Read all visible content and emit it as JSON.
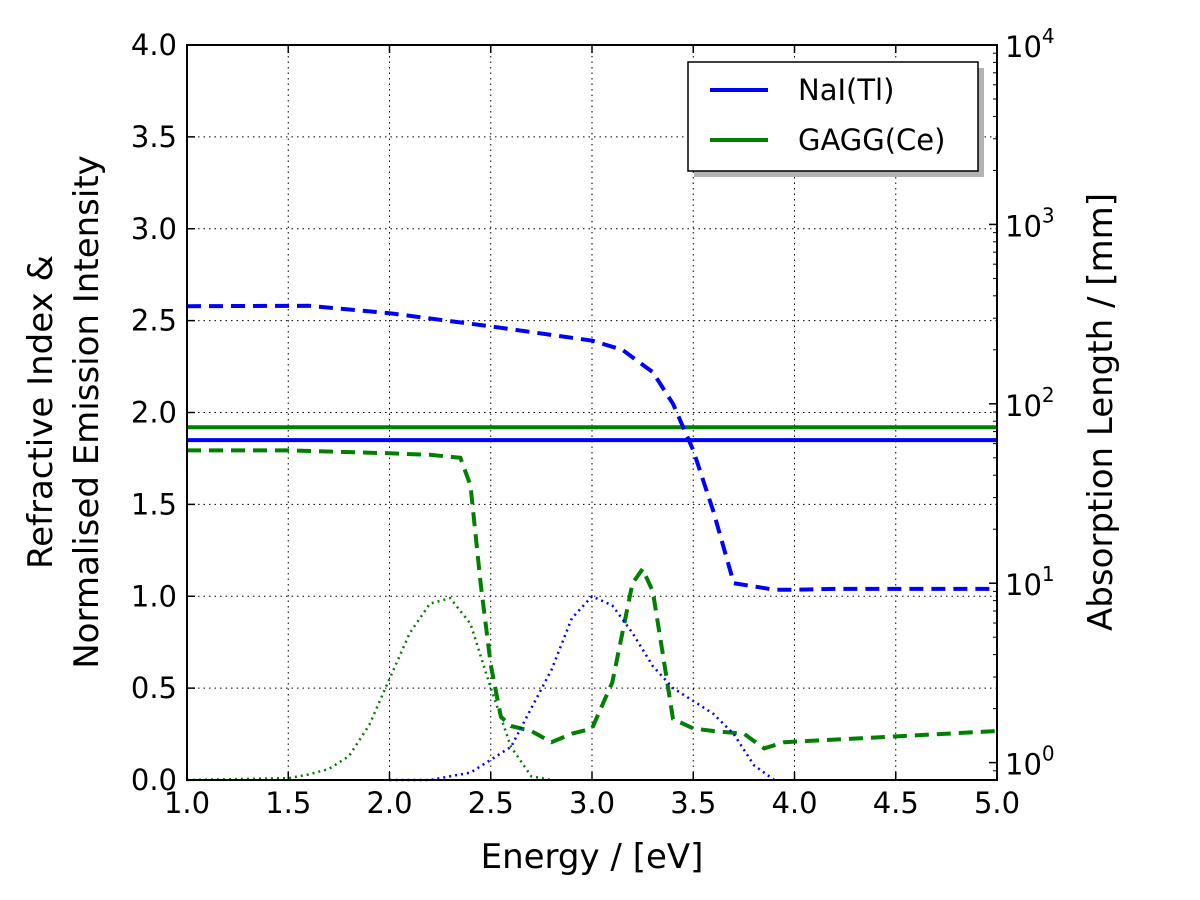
{
  "chart_data": {
    "type": "line",
    "xlabel": "Energy / [eV]",
    "ylabel_left_line1": "Refractive Index &",
    "ylabel_left_line2": "Normalised Emission Intensity",
    "ylabel_right": "Absorption Length / [mm]",
    "xlim": [
      1.0,
      5.0
    ],
    "ylim_left": [
      0.0,
      4.0
    ],
    "ylim_right": [
      0.8,
      10000
    ],
    "y_right_scale": "log",
    "grid": true,
    "legend_position": "top-right",
    "x_ticks": [
      "1.0",
      "1.5",
      "2.0",
      "2.5",
      "3.0",
      "3.5",
      "4.0",
      "4.5",
      "5.0"
    ],
    "x_tick_values": [
      1.0,
      1.5,
      2.0,
      2.5,
      3.0,
      3.5,
      4.0,
      4.5,
      5.0
    ],
    "y_left_ticks": [
      "0.0",
      "0.5",
      "1.0",
      "1.5",
      "2.0",
      "2.5",
      "3.0",
      "3.5",
      "4.0"
    ],
    "y_left_tick_values": [
      0.0,
      0.5,
      1.0,
      1.5,
      2.0,
      2.5,
      3.0,
      3.5,
      4.0
    ],
    "y_right_ticks": [
      {
        "value": 1,
        "base": "10",
        "exp": "0"
      },
      {
        "value": 10,
        "base": "10",
        "exp": "1"
      },
      {
        "value": 100,
        "base": "10",
        "exp": "2"
      },
      {
        "value": 1000,
        "base": "10",
        "exp": "3"
      },
      {
        "value": 10000,
        "base": "10",
        "exp": "4"
      }
    ],
    "legend": [
      {
        "label": "NaI(Tl)",
        "color": "#0000ff"
      },
      {
        "label": "GAGG(Ce)",
        "color": "#007f00"
      }
    ],
    "series": [
      {
        "name": "NaI(Tl) refractive index",
        "material": "NaI(Tl)",
        "axis": "left",
        "style": "solid",
        "color": "#0000ff",
        "x": [
          1.0,
          5.0
        ],
        "y": [
          1.85,
          1.85
        ]
      },
      {
        "name": "GAGG(Ce) refractive index",
        "material": "GAGG(Ce)",
        "axis": "left",
        "style": "solid",
        "color": "#007f00",
        "x": [
          1.0,
          5.0
        ],
        "y": [
          1.92,
          1.92
        ]
      },
      {
        "name": "NaI(Tl) absorption length",
        "material": "NaI(Tl)",
        "axis": "right",
        "style": "dashed",
        "color": "#0000ff",
        "x": [
          1.0,
          1.6,
          2.0,
          2.5,
          3.0,
          3.15,
          3.3,
          3.4,
          3.5,
          3.6,
          3.7,
          3.9,
          4.0,
          4.2,
          5.0
        ],
        "y": [
          350,
          352,
          320,
          270,
          225,
          200,
          150,
          100,
          55,
          25,
          10,
          9.2,
          9.2,
          9.3,
          9.3
        ]
      },
      {
        "name": "GAGG(Ce) absorption length",
        "material": "GAGG(Ce)",
        "axis": "right",
        "style": "dashed",
        "color": "#007f00",
        "x": [
          1.0,
          1.5,
          2.0,
          2.2,
          2.35,
          2.4,
          2.45,
          2.5,
          2.55,
          2.6,
          2.7,
          2.8,
          2.9,
          3.0,
          3.1,
          3.2,
          3.25,
          3.3,
          3.35,
          3.4,
          3.5,
          3.6,
          3.75,
          3.85,
          3.95,
          4.5,
          5.0
        ],
        "y": [
          55,
          55,
          53,
          52,
          50,
          35,
          10,
          3.5,
          1.8,
          1.6,
          1.5,
          1.3,
          1.45,
          1.55,
          2.8,
          10,
          12,
          9,
          4,
          1.75,
          1.55,
          1.5,
          1.45,
          1.2,
          1.3,
          1.4,
          1.5
        ]
      },
      {
        "name": "NaI(Tl) emission",
        "material": "NaI(Tl)",
        "axis": "left",
        "style": "dotted",
        "color": "#0000ff",
        "x": [
          2.0,
          2.2,
          2.4,
          2.6,
          2.8,
          2.9,
          3.0,
          3.1,
          3.2,
          3.3,
          3.4,
          3.5,
          3.6,
          3.7,
          3.8,
          3.9
        ],
        "y": [
          0.0,
          0.0,
          0.04,
          0.18,
          0.6,
          0.88,
          1.0,
          0.95,
          0.8,
          0.62,
          0.5,
          0.43,
          0.36,
          0.25,
          0.08,
          0.0
        ]
      },
      {
        "name": "GAGG(Ce) emission",
        "material": "GAGG(Ce)",
        "axis": "left",
        "style": "dotted",
        "color": "#007f00",
        "x": [
          1.0,
          1.5,
          1.6,
          1.7,
          1.8,
          1.9,
          2.0,
          2.1,
          2.2,
          2.3,
          2.4,
          2.5,
          2.6,
          2.7,
          2.8
        ],
        "y": [
          0.0,
          0.01,
          0.03,
          0.06,
          0.13,
          0.3,
          0.55,
          0.8,
          0.96,
          0.99,
          0.85,
          0.5,
          0.18,
          0.02,
          0.0
        ]
      }
    ]
  }
}
